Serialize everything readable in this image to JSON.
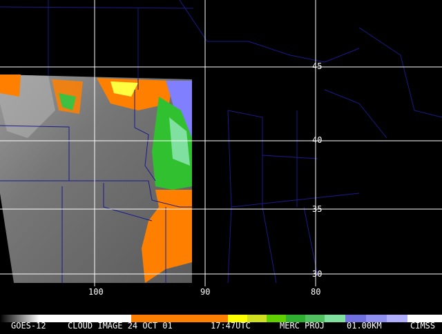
{
  "grid": {
    "lat_labels": [
      "45",
      "40",
      "35",
      "30"
    ],
    "lon_labels": [
      "100",
      "90",
      "80"
    ]
  },
  "footer": {
    "items": [
      "GOES-12",
      "CLOUD IMAGE 24 OCT 01",
      "17:47UTC",
      "MERC PROJ",
      "01.00KM",
      "CIMSS"
    ]
  }
}
